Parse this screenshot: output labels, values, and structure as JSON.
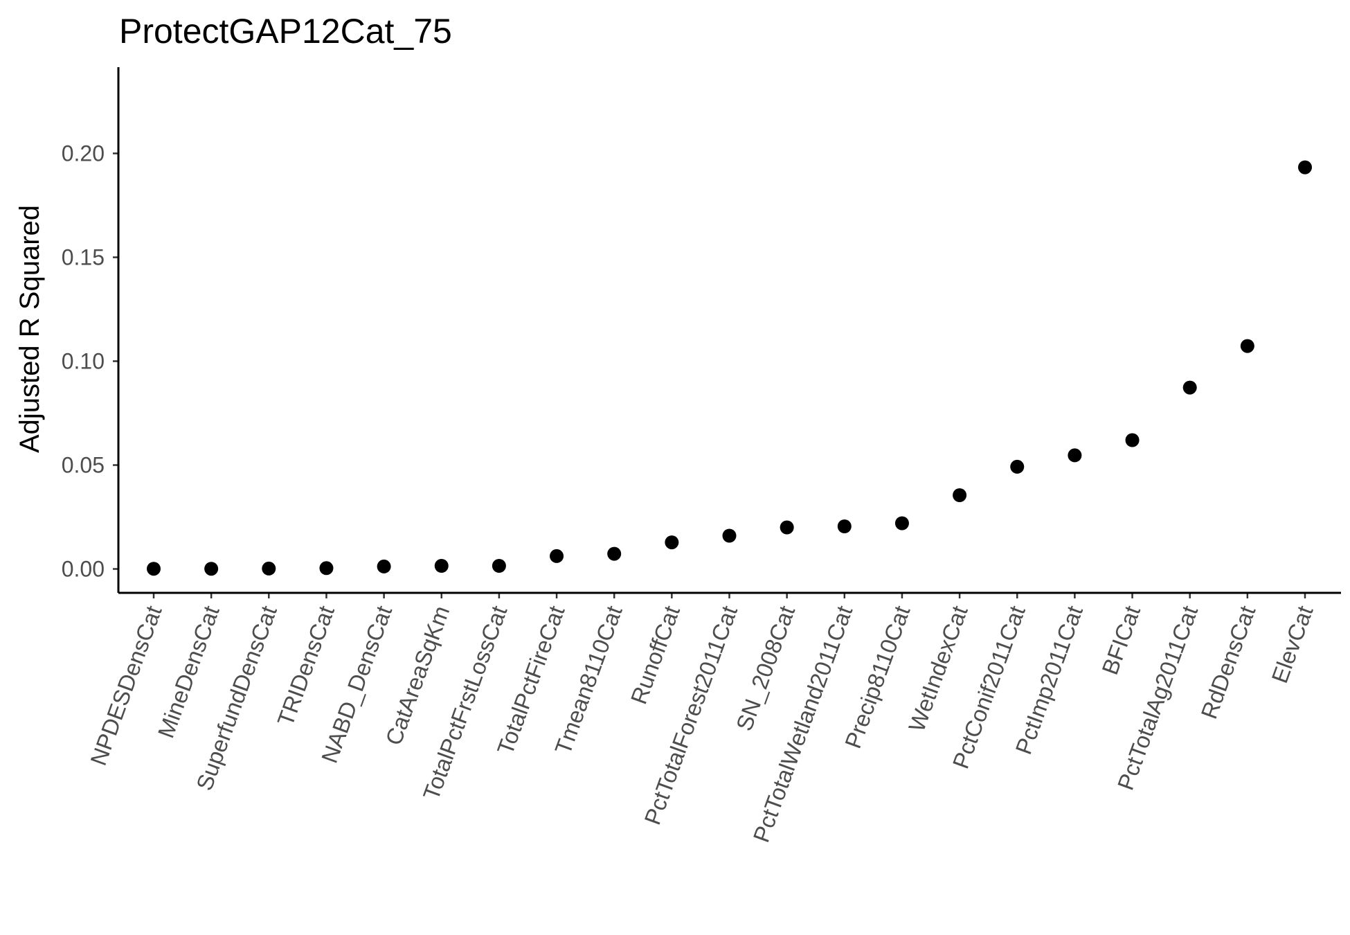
{
  "chart_data": {
    "type": "scatter",
    "title": "ProtectGAP12Cat_75",
    "xlabel": "",
    "ylabel": "Adjusted R Squared",
    "ylim": [
      -0.0115,
      0.2415
    ],
    "yticks": [
      "0.00",
      "0.05",
      "0.10",
      "0.15",
      "0.20"
    ],
    "ytick_values": [
      0.0,
      0.05,
      0.1,
      0.15,
      0.2
    ],
    "grid": false,
    "legend": "none",
    "point_color": "#000000",
    "categories": [
      "NPDESDensCat",
      "MineDensCat",
      "SuperfundDensCat",
      "TRIDensCat",
      "NABD_DensCat",
      "CatAreaSqKm",
      "TotalPctFrstLossCat",
      "TotalPctFireCat",
      "Tmean8110Cat",
      "RunoffCat",
      "PctTotalForest2011Cat",
      "SN_2008Cat",
      "PctTotalWetland2011Cat",
      "Precip8110Cat",
      "WetIndexCat",
      "PctConif2011Cat",
      "PctImp2011Cat",
      "BFICat",
      "PctTotalAg2011Cat",
      "RdDensCat",
      "ElevCat"
    ],
    "values": [
      0.0001,
      0.0001,
      0.0002,
      0.0004,
      0.0012,
      0.0015,
      0.0015,
      0.0062,
      0.0073,
      0.0128,
      0.016,
      0.02,
      0.0205,
      0.022,
      0.0355,
      0.0492,
      0.0547,
      0.062,
      0.0873,
      0.1073,
      0.1933
    ]
  }
}
